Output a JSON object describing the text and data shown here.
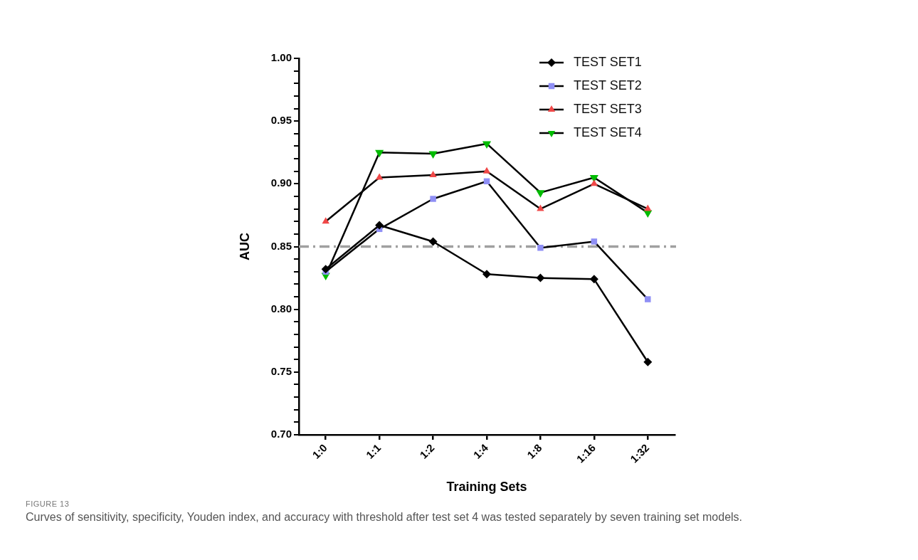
{
  "chart_data": {
    "type": "line",
    "xlabel": "Training Sets",
    "ylabel": "AUC",
    "categories": [
      "1:0",
      "1:1",
      "1:2",
      "1:4",
      "1:8",
      "1:16",
      "1:32"
    ],
    "series": [
      {
        "name": "TEST SET1",
        "color": "#000000",
        "marker": "diamond",
        "values": [
          0.832,
          0.867,
          0.854,
          0.828,
          0.825,
          0.824,
          0.758
        ]
      },
      {
        "name": "TEST SET2",
        "color": "#8f8ff5",
        "marker": "square",
        "values": [
          0.83,
          0.864,
          0.888,
          0.902,
          0.849,
          0.854,
          0.808
        ]
      },
      {
        "name": "TEST SET3",
        "color": "#f04848",
        "marker": "triangle",
        "values": [
          0.87,
          0.905,
          0.907,
          0.91,
          0.88,
          0.9,
          0.88
        ]
      },
      {
        "name": "TEST SET4",
        "color": "#00bb00",
        "marker": "triangle-down",
        "values": [
          0.827,
          0.925,
          0.924,
          0.932,
          0.893,
          0.905,
          0.877
        ]
      }
    ],
    "ylim": [
      0.7,
      1.0
    ],
    "yticks": [
      {
        "value": 0.7,
        "label": "0.70"
      },
      {
        "value": 0.71,
        "label": null
      },
      {
        "value": 0.72,
        "label": null
      },
      {
        "value": 0.73,
        "label": null
      },
      {
        "value": 0.74,
        "label": null
      },
      {
        "value": 0.75,
        "label": "0.75"
      },
      {
        "value": 0.76,
        "label": null
      },
      {
        "value": 0.77,
        "label": null
      },
      {
        "value": 0.78,
        "label": null
      },
      {
        "value": 0.79,
        "label": null
      },
      {
        "value": 0.8,
        "label": "0.80"
      },
      {
        "value": 0.81,
        "label": null
      },
      {
        "value": 0.82,
        "label": null
      },
      {
        "value": 0.83,
        "label": null
      },
      {
        "value": 0.84,
        "label": null
      },
      {
        "value": 0.85,
        "label": "0.85"
      },
      {
        "value": 0.86,
        "label": null
      },
      {
        "value": 0.87,
        "label": null
      },
      {
        "value": 0.88,
        "label": null
      },
      {
        "value": 0.89,
        "label": null
      },
      {
        "value": 0.9,
        "label": "0.90"
      },
      {
        "value": 0.91,
        "label": null
      },
      {
        "value": 0.92,
        "label": null
      },
      {
        "value": 0.93,
        "label": null
      },
      {
        "value": 0.94,
        "label": null
      },
      {
        "value": 0.95,
        "label": "0.95"
      },
      {
        "value": 0.96,
        "label": null
      },
      {
        "value": 0.97,
        "label": null
      },
      {
        "value": 0.98,
        "label": null
      },
      {
        "value": 0.99,
        "label": null
      },
      {
        "value": 1.0,
        "label": "1.00"
      }
    ],
    "ref_lines": [
      {
        "axis": "y",
        "value": 0.85,
        "color": "#a0a0a0",
        "line_style": "dashed"
      }
    ],
    "grid": false,
    "legend": "top right",
    "annotations": [
      "FIGURE 13",
      "Curves of sensitivity, specificity, Youden index, and accuracy with threshold after test set 4 was tested separately by seven training set models."
    ]
  }
}
